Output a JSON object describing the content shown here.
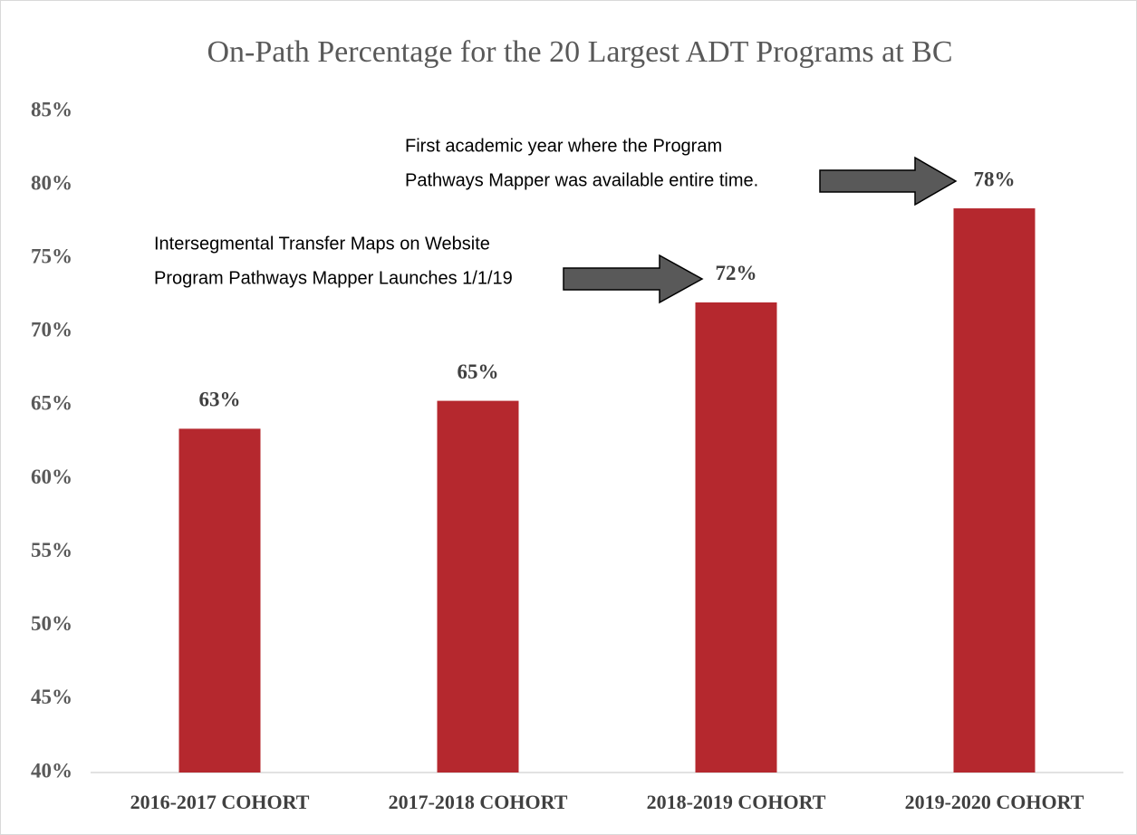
{
  "chart_data": {
    "type": "bar",
    "title": "On-Path Percentage for the 20 Largest ADT Programs at BC",
    "categories": [
      "2016-2017 COHORT",
      "2017-2018 COHORT",
      "2018-2019 COHORT",
      "2019-2020 COHORT"
    ],
    "values": [
      63.4,
      65.3,
      72.0,
      78.4
    ],
    "value_labels": [
      "63%",
      "65%",
      "72%",
      "78%"
    ],
    "color": "#b5282e",
    "ylim": [
      40,
      85
    ],
    "yticks": [
      {
        "value": 40,
        "label": "40%"
      },
      {
        "value": 45,
        "label": "45%"
      },
      {
        "value": 50,
        "label": "50%"
      },
      {
        "value": 55,
        "label": "55%"
      },
      {
        "value": 60,
        "label": "60%"
      },
      {
        "value": 65,
        "label": "65%"
      },
      {
        "value": 70,
        "label": "70%"
      },
      {
        "value": 75,
        "label": "75%"
      },
      {
        "value": 80,
        "label": "80%"
      },
      {
        "value": 85,
        "label": "85%"
      }
    ],
    "grid": false,
    "annotations": [
      {
        "lines": [
          "First academic year where the Program",
          "Pathways Mapper was available entire time."
        ]
      },
      {
        "lines": [
          "Intersegmental Transfer Maps on Website",
          "Program Pathways Mapper Launches 1/1/19"
        ]
      }
    ]
  }
}
